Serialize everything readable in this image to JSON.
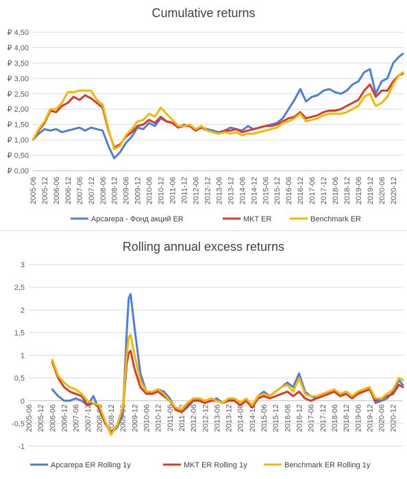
{
  "colors": {
    "blue": "#4a7ee0",
    "red": "#d93a2b",
    "yellow": "#f5b800",
    "grid": "#d9d9d9",
    "axis": "#bfbfbf"
  },
  "chart_data": [
    {
      "type": "line",
      "title": "Cumulative returns",
      "xlabel": "",
      "ylabel": "",
      "x_tick_labels": [
        "2005-06",
        "2005-12",
        "2006-06",
        "2006-12",
        "2007-06",
        "2007-12",
        "2008-06",
        "2008-12",
        "2009-06",
        "2009-12",
        "2010-06",
        "2010-12",
        "2011-06",
        "2011-12",
        "2012-06",
        "2012-12",
        "2013-06",
        "2013-12",
        "2014-06",
        "2014-12",
        "2015-06",
        "2015-12",
        "2016-06",
        "2016-12",
        "2017-06",
        "2017-12",
        "2018-06",
        "2018-12",
        "2019-06",
        "2019-12",
        "2020-06",
        "2020-12"
      ],
      "y_tick_labels": [
        "₽ 0,00",
        "₽ 0,50",
        "₽ 1,00",
        "₽ 1,50",
        "₽ 2,00",
        "₽ 2,50",
        "₽ 3,00",
        "₽ 3,50",
        "₽ 4,00",
        "₽ 4,50"
      ],
      "ylim": [
        0,
        4.5
      ],
      "grid": "horizontal",
      "legend": "bottom",
      "series": [
        {
          "name": "Арсагера - Фонд акций ER",
          "color": "#4a7ee0",
          "x": [
            "2005-06",
            "2005-09",
            "2005-12",
            "2006-03",
            "2006-06",
            "2006-09",
            "2006-12",
            "2007-03",
            "2007-06",
            "2007-09",
            "2007-12",
            "2008-03",
            "2008-06",
            "2008-09",
            "2008-12",
            "2009-03",
            "2009-06",
            "2009-09",
            "2009-12",
            "2010-03",
            "2010-06",
            "2010-09",
            "2010-12",
            "2011-03",
            "2011-06",
            "2011-09",
            "2011-12",
            "2012-03",
            "2012-06",
            "2012-09",
            "2012-12",
            "2013-03",
            "2013-06",
            "2013-09",
            "2013-12",
            "2014-03",
            "2014-06",
            "2014-09",
            "2014-12",
            "2015-03",
            "2015-06",
            "2015-09",
            "2015-12",
            "2016-03",
            "2016-06",
            "2016-09",
            "2016-12",
            "2017-03",
            "2017-06",
            "2017-09",
            "2017-12",
            "2018-03",
            "2018-06",
            "2018-09",
            "2018-12",
            "2019-03",
            "2019-06",
            "2019-09",
            "2019-12",
            "2020-03",
            "2020-06",
            "2020-09",
            "2020-12",
            "2021-03",
            "2021-05"
          ],
          "y": [
            1.0,
            1.2,
            1.35,
            1.3,
            1.35,
            1.25,
            1.3,
            1.35,
            1.4,
            1.3,
            1.4,
            1.35,
            1.3,
            0.8,
            0.4,
            0.6,
            0.9,
            1.1,
            1.4,
            1.35,
            1.55,
            1.45,
            1.7,
            1.6,
            1.55,
            1.4,
            1.5,
            1.45,
            1.35,
            1.4,
            1.35,
            1.3,
            1.25,
            1.3,
            1.4,
            1.35,
            1.3,
            1.45,
            1.35,
            1.4,
            1.45,
            1.5,
            1.55,
            1.7,
            2.0,
            2.3,
            2.65,
            2.25,
            2.4,
            2.45,
            2.6,
            2.65,
            2.55,
            2.5,
            2.6,
            2.8,
            2.9,
            3.2,
            3.3,
            2.5,
            2.9,
            3.0,
            3.5,
            3.7,
            3.8
          ]
        },
        {
          "name": "MKT ER",
          "color": "#d93a2b",
          "x": [
            "2005-06",
            "2005-09",
            "2005-12",
            "2006-03",
            "2006-06",
            "2006-09",
            "2006-12",
            "2007-03",
            "2007-06",
            "2007-09",
            "2007-12",
            "2008-03",
            "2008-06",
            "2008-09",
            "2008-12",
            "2009-03",
            "2009-06",
            "2009-09",
            "2009-12",
            "2010-03",
            "2010-06",
            "2010-09",
            "2010-12",
            "2011-03",
            "2011-06",
            "2011-09",
            "2011-12",
            "2012-03",
            "2012-06",
            "2012-09",
            "2012-12",
            "2013-03",
            "2013-06",
            "2013-09",
            "2013-12",
            "2014-03",
            "2014-06",
            "2014-09",
            "2014-12",
            "2015-03",
            "2015-06",
            "2015-09",
            "2015-12",
            "2016-03",
            "2016-06",
            "2016-09",
            "2016-12",
            "2017-03",
            "2017-06",
            "2017-09",
            "2017-12",
            "2018-03",
            "2018-06",
            "2018-09",
            "2018-12",
            "2019-03",
            "2019-06",
            "2019-09",
            "2019-12",
            "2020-03",
            "2020-06",
            "2020-09",
            "2020-12",
            "2021-03",
            "2021-05"
          ],
          "y": [
            1.0,
            1.3,
            1.55,
            1.95,
            1.9,
            2.1,
            2.2,
            2.4,
            2.3,
            2.45,
            2.35,
            2.2,
            2.05,
            1.3,
            0.75,
            0.85,
            1.1,
            1.25,
            1.45,
            1.5,
            1.65,
            1.55,
            1.75,
            1.6,
            1.55,
            1.4,
            1.45,
            1.45,
            1.3,
            1.4,
            1.3,
            1.25,
            1.2,
            1.3,
            1.3,
            1.35,
            1.25,
            1.3,
            1.35,
            1.4,
            1.45,
            1.45,
            1.5,
            1.6,
            1.7,
            1.75,
            1.9,
            1.7,
            1.75,
            1.8,
            1.9,
            1.95,
            1.95,
            2.0,
            2.1,
            2.2,
            2.3,
            2.6,
            2.8,
            2.4,
            2.6,
            2.6,
            2.9,
            3.1,
            3.15
          ]
        },
        {
          "name": "Benchmark ER",
          "color": "#f5b800",
          "x": [
            "2005-06",
            "2005-09",
            "2005-12",
            "2006-03",
            "2006-06",
            "2006-09",
            "2006-12",
            "2007-03",
            "2007-06",
            "2007-09",
            "2007-12",
            "2008-03",
            "2008-06",
            "2008-09",
            "2008-12",
            "2009-03",
            "2009-06",
            "2009-09",
            "2009-12",
            "2010-03",
            "2010-06",
            "2010-09",
            "2010-12",
            "2011-03",
            "2011-06",
            "2011-09",
            "2011-12",
            "2012-03",
            "2012-06",
            "2012-09",
            "2012-12",
            "2013-03",
            "2013-06",
            "2013-09",
            "2013-12",
            "2014-03",
            "2014-06",
            "2014-09",
            "2014-12",
            "2015-03",
            "2015-06",
            "2015-09",
            "2015-12",
            "2016-03",
            "2016-06",
            "2016-09",
            "2016-12",
            "2017-03",
            "2017-06",
            "2017-09",
            "2017-12",
            "2018-03",
            "2018-06",
            "2018-09",
            "2018-12",
            "2019-03",
            "2019-06",
            "2019-09",
            "2019-12",
            "2020-03",
            "2020-06",
            "2020-09",
            "2020-12",
            "2021-03",
            "2021-05"
          ],
          "y": [
            1.0,
            1.35,
            1.6,
            2.0,
            2.0,
            2.2,
            2.55,
            2.55,
            2.6,
            2.6,
            2.6,
            2.3,
            2.15,
            1.35,
            0.7,
            0.8,
            1.15,
            1.35,
            1.6,
            1.65,
            1.85,
            1.75,
            2.05,
            1.85,
            1.65,
            1.45,
            1.45,
            1.5,
            1.35,
            1.45,
            1.3,
            1.25,
            1.2,
            1.25,
            1.2,
            1.25,
            1.15,
            1.2,
            1.2,
            1.25,
            1.3,
            1.35,
            1.4,
            1.55,
            1.6,
            1.7,
            1.85,
            1.6,
            1.65,
            1.7,
            1.8,
            1.85,
            1.85,
            1.85,
            1.9,
            2.0,
            2.1,
            2.4,
            2.5,
            2.1,
            2.2,
            2.4,
            2.8,
            3.1,
            3.2
          ]
        }
      ]
    },
    {
      "type": "line",
      "title": "Rolling annual excess returns",
      "xlabel": "",
      "ylabel": "",
      "x_tick_labels": [
        "2005-06",
        "2005-12",
        "2006-06",
        "2006-12",
        "2007-06",
        "2007-12",
        "2008-06",
        "2008-12",
        "2009-06",
        "2009-12",
        "2010-06",
        "2010-12",
        "2011-06",
        "2011-12",
        "2012-06",
        "2012-12",
        "2013-06",
        "2013-12",
        "2014-06",
        "2014-12",
        "2015-06",
        "2015-12",
        "2016-06",
        "2016-12",
        "2017-06",
        "2017-12",
        "2018-06",
        "2018-12",
        "2019-06",
        "2019-12",
        "2020-06",
        "2020-12"
      ],
      "y_tick_labels": [
        "-1",
        "-0,5",
        "0",
        "0,5",
        "1",
        "1,5",
        "2",
        "2,5",
        "3"
      ],
      "ylim": [
        -1,
        3
      ],
      "grid": "horizontal",
      "legend": "bottom",
      "series": [
        {
          "name": "Арсагера ER Rolling 1y",
          "color": "#4a7ee0",
          "x": [
            "2006-06",
            "2006-09",
            "2006-12",
            "2007-03",
            "2007-06",
            "2007-09",
            "2007-12",
            "2008-03",
            "2008-06",
            "2008-09",
            "2008-12",
            "2009-03",
            "2009-06",
            "2009-08",
            "2009-09",
            "2009-10",
            "2009-12",
            "2010-03",
            "2010-06",
            "2010-09",
            "2010-12",
            "2011-03",
            "2011-06",
            "2011-09",
            "2011-12",
            "2012-03",
            "2012-06",
            "2012-09",
            "2012-12",
            "2013-03",
            "2013-06",
            "2013-09",
            "2013-12",
            "2014-03",
            "2014-06",
            "2014-09",
            "2014-12",
            "2015-03",
            "2015-06",
            "2015-09",
            "2015-12",
            "2016-03",
            "2016-06",
            "2016-09",
            "2016-12",
            "2017-03",
            "2017-06",
            "2017-09",
            "2017-12",
            "2018-03",
            "2018-06",
            "2018-09",
            "2018-12",
            "2019-03",
            "2019-06",
            "2019-09",
            "2019-12",
            "2020-03",
            "2020-06",
            "2020-09",
            "2020-12",
            "2021-03",
            "2021-05"
          ],
          "y": [
            0.25,
            0.1,
            0.0,
            0.0,
            0.05,
            0.0,
            -0.1,
            0.1,
            -0.2,
            -0.5,
            -0.7,
            -0.6,
            -0.3,
            1.5,
            2.25,
            2.35,
            1.6,
            0.6,
            0.2,
            0.15,
            0.25,
            0.2,
            0.05,
            -0.2,
            -0.25,
            -0.15,
            0.0,
            0.05,
            -0.05,
            0.0,
            0.05,
            -0.05,
            0.0,
            0.05,
            -0.05,
            0.0,
            -0.15,
            0.1,
            0.2,
            0.1,
            0.2,
            0.3,
            0.4,
            0.3,
            0.6,
            0.2,
            0.1,
            0.05,
            0.1,
            0.15,
            0.2,
            0.1,
            0.2,
            0.1,
            0.15,
            0.25,
            0.3,
            -0.05,
            0.0,
            0.05,
            0.2,
            0.45,
            0.35
          ]
        },
        {
          "name": "MKT ER Rolling 1y",
          "color": "#d93a2b",
          "x": [
            "2006-06",
            "2006-09",
            "2006-12",
            "2007-03",
            "2007-06",
            "2007-09",
            "2007-12",
            "2008-03",
            "2008-06",
            "2008-09",
            "2008-12",
            "2009-03",
            "2009-06",
            "2009-08",
            "2009-09",
            "2009-10",
            "2009-12",
            "2010-03",
            "2010-06",
            "2010-09",
            "2010-12",
            "2011-03",
            "2011-06",
            "2011-09",
            "2011-12",
            "2012-03",
            "2012-06",
            "2012-09",
            "2012-12",
            "2013-03",
            "2013-06",
            "2013-09",
            "2013-12",
            "2014-03",
            "2014-06",
            "2014-09",
            "2014-12",
            "2015-03",
            "2015-06",
            "2015-09",
            "2015-12",
            "2016-03",
            "2016-06",
            "2016-09",
            "2016-12",
            "2017-03",
            "2017-06",
            "2017-09",
            "2017-12",
            "2018-03",
            "2018-06",
            "2018-09",
            "2018-12",
            "2019-03",
            "2019-06",
            "2019-09",
            "2019-12",
            "2020-03",
            "2020-06",
            "2020-09",
            "2020-12",
            "2021-03",
            "2021-05"
          ],
          "y": [
            0.85,
            0.5,
            0.3,
            0.2,
            0.15,
            0.1,
            -0.1,
            -0.05,
            -0.15,
            -0.5,
            -0.7,
            -0.55,
            -0.2,
            0.8,
            1.05,
            1.1,
            0.7,
            0.3,
            0.15,
            0.15,
            0.2,
            0.1,
            0.0,
            -0.2,
            -0.25,
            -0.1,
            0.0,
            0.0,
            -0.05,
            0.0,
            0.0,
            -0.05,
            0.0,
            0.0,
            -0.1,
            0.0,
            -0.15,
            0.05,
            0.1,
            0.05,
            0.1,
            0.15,
            0.2,
            0.1,
            0.2,
            0.05,
            0.0,
            0.05,
            0.1,
            0.15,
            0.2,
            0.1,
            0.15,
            0.05,
            0.15,
            0.2,
            0.25,
            0.0,
            0.05,
            0.1,
            0.15,
            0.35,
            0.3
          ]
        },
        {
          "name": "Benchmark ER Rolling 1y",
          "color": "#f5b800",
          "x": [
            "2006-06",
            "2006-09",
            "2006-12",
            "2007-03",
            "2007-06",
            "2007-09",
            "2007-12",
            "2008-03",
            "2008-06",
            "2008-09",
            "2008-12",
            "2009-03",
            "2009-06",
            "2009-08",
            "2009-09",
            "2009-10",
            "2009-12",
            "2010-03",
            "2010-06",
            "2010-09",
            "2010-12",
            "2011-03",
            "2011-06",
            "2011-09",
            "2011-12",
            "2012-03",
            "2012-06",
            "2012-09",
            "2012-12",
            "2013-03",
            "2013-06",
            "2013-09",
            "2013-12",
            "2014-03",
            "2014-06",
            "2014-09",
            "2014-12",
            "2015-03",
            "2015-06",
            "2015-09",
            "2015-12",
            "2016-03",
            "2016-06",
            "2016-09",
            "2016-12",
            "2017-03",
            "2017-06",
            "2017-09",
            "2017-12",
            "2018-03",
            "2018-06",
            "2018-09",
            "2018-12",
            "2019-03",
            "2019-06",
            "2019-09",
            "2019-12",
            "2020-03",
            "2020-06",
            "2020-09",
            "2020-12",
            "2021-03",
            "2021-05"
          ],
          "y": [
            0.9,
            0.55,
            0.4,
            0.3,
            0.25,
            0.15,
            0.0,
            -0.05,
            -0.1,
            -0.45,
            -0.75,
            -0.55,
            -0.15,
            1.0,
            1.4,
            1.45,
            1.0,
            0.45,
            0.2,
            0.2,
            0.25,
            0.15,
            0.0,
            -0.15,
            -0.2,
            -0.05,
            0.05,
            0.05,
            0.0,
            0.05,
            0.0,
            -0.05,
            0.05,
            0.05,
            -0.05,
            0.05,
            -0.1,
            0.1,
            0.15,
            0.1,
            0.2,
            0.3,
            0.35,
            0.2,
            0.5,
            0.15,
            0.1,
            0.1,
            0.15,
            0.2,
            0.25,
            0.15,
            0.2,
            0.1,
            0.2,
            0.25,
            0.3,
            0.05,
            0.05,
            0.15,
            0.25,
            0.5,
            0.45
          ]
        }
      ]
    }
  ]
}
